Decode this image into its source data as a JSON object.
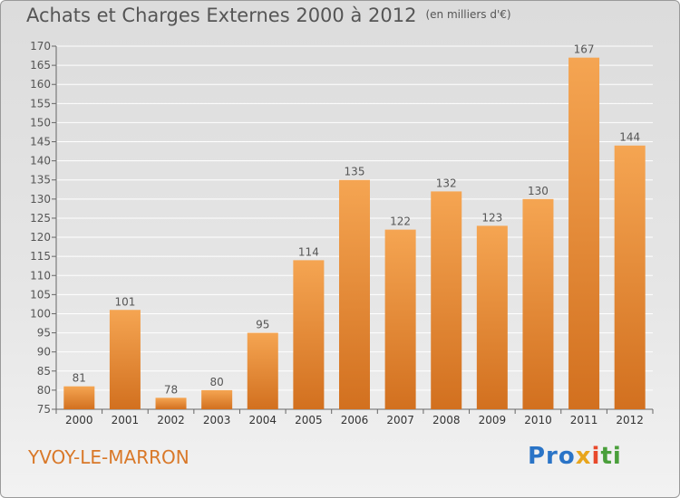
{
  "header": {
    "title": "Achats et Charges Externes 2000 à 2012",
    "subtitle": "(en milliers d'€)"
  },
  "footer": {
    "town": "YVOY-LE-MARRON",
    "logo_parts": [
      "Pro",
      "x",
      "i",
      "ti"
    ]
  },
  "colors": {
    "bar_light": "#f5a552",
    "bar_dark": "#d2701f",
    "label": "#555555",
    "grid": "#ffffff"
  },
  "chart_data": {
    "type": "bar",
    "title": "Achats et Charges Externes 2000 à 2012",
    "subtitle": "(en milliers d'€)",
    "categories": [
      "2000",
      "2001",
      "2002",
      "2003",
      "2004",
      "2005",
      "2006",
      "2007",
      "2008",
      "2009",
      "2010",
      "2011",
      "2012"
    ],
    "values": [
      81,
      101,
      78,
      80,
      95,
      114,
      135,
      122,
      132,
      123,
      130,
      167,
      144
    ],
    "ylim": [
      75,
      170
    ],
    "yticks": [
      75,
      80,
      85,
      90,
      95,
      100,
      105,
      110,
      115,
      120,
      125,
      130,
      135,
      140,
      145,
      150,
      155,
      160,
      165,
      170
    ],
    "grid": true,
    "xlabel": "",
    "ylabel": ""
  }
}
